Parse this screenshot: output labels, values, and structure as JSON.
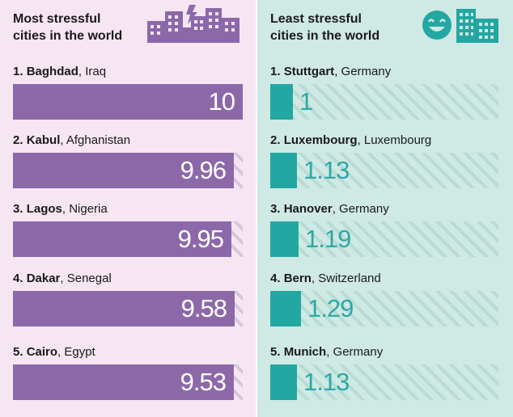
{
  "colors": {
    "left_background": "#f5e6f2",
    "right_background": "#cfe9e4",
    "stressful_bar": "#8c68a9",
    "least_stressful_bar": "#23a7a3",
    "hatch": "#b8dbd4",
    "left_hatch": "#d6c6dc"
  },
  "chart_data": [
    {
      "type": "bar",
      "orientation": "horizontal",
      "title": "Most stressful cities in the world",
      "title_lines": [
        "Most stressful",
        "cities in the world"
      ],
      "scale_max": 10,
      "icon": "city-lightning-icon",
      "entries": [
        {
          "rank": "1.",
          "city": "Baghdad",
          "country": ", Iraq",
          "value": 10,
          "value_label": "10"
        },
        {
          "rank": "2.",
          "city": "Kabul",
          "country": ", Afghanistan",
          "value": 9.96,
          "value_label": "9.96"
        },
        {
          "rank": "3.",
          "city": "Lagos",
          "country": ", Nigeria",
          "value": 9.95,
          "value_label": "9.95"
        },
        {
          "rank": "4.",
          "city": "Dakar",
          "country": ", Senegal",
          "value": 9.58,
          "value_label": "9.58"
        },
        {
          "rank": "5.",
          "city": "Cairo",
          "country": ", Egypt",
          "value": 9.53,
          "value_label": "9.53"
        }
      ]
    },
    {
      "type": "bar",
      "orientation": "horizontal",
      "title": "Least stressful cities in the world",
      "title_lines": [
        "Least stressful",
        "cities in the world"
      ],
      "scale_max": 10,
      "icon": "smiley-city-icon",
      "entries": [
        {
          "rank": "1.",
          "city": "Stuttgart",
          "country": ", Germany",
          "value": 1,
          "value_label": "1"
        },
        {
          "rank": "2.",
          "city": "Luxembourg",
          "country": ", Luxembourg",
          "value": 1.13,
          "value_label": "1.13"
        },
        {
          "rank": "3.",
          "city": "Hanover",
          "country": ", Germany",
          "value": 1.19,
          "value_label": "1.19"
        },
        {
          "rank": "4.",
          "city": "Bern",
          "country": ", Switzerland",
          "value": 1.29,
          "value_label": "1.29"
        },
        {
          "rank": "5.",
          "city": "Munich",
          "country": ", Germany",
          "value": 1.13,
          "value_label": "1.13"
        }
      ]
    }
  ]
}
